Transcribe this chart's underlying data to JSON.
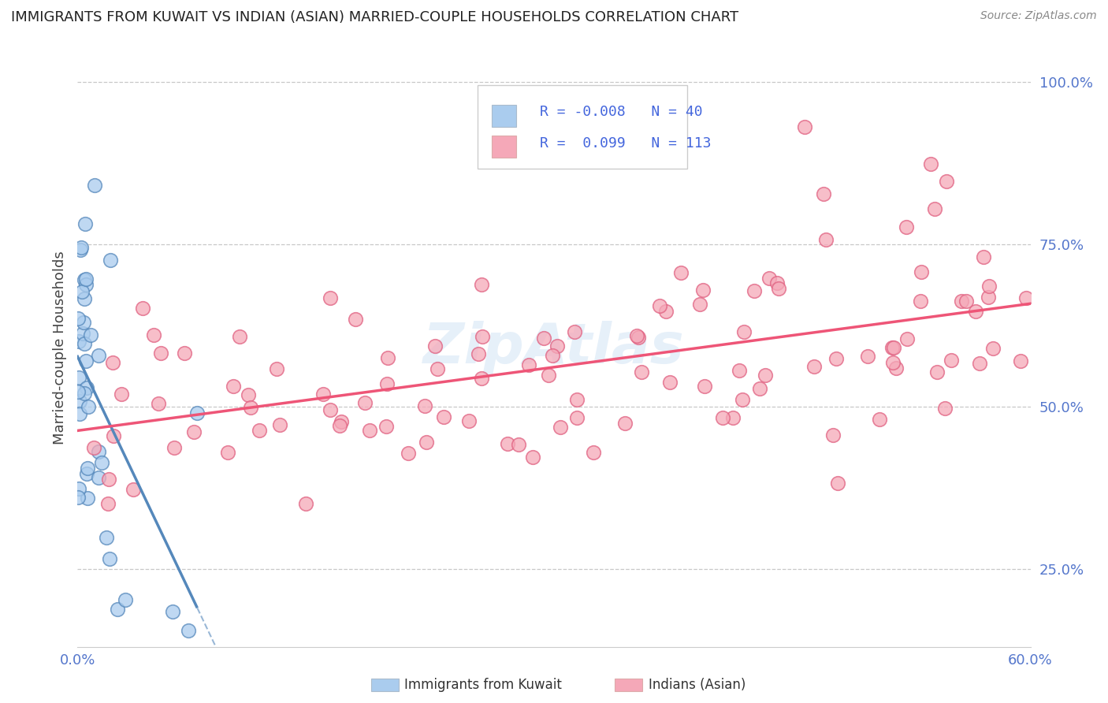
{
  "title": "IMMIGRANTS FROM KUWAIT VS INDIAN (ASIAN) MARRIED-COUPLE HOUSEHOLDS CORRELATION CHART",
  "source": "Source: ZipAtlas.com",
  "ylabel": "Married-couple Households",
  "x_label_kuwait": "Immigrants from Kuwait",
  "x_label_indian": "Indians (Asian)",
  "x_min": 0.0,
  "x_max": 0.6,
  "y_min": 0.13,
  "y_max": 1.05,
  "y_ticks": [
    0.25,
    0.5,
    0.75,
    1.0
  ],
  "y_tick_labels": [
    "25.0%",
    "50.0%",
    "75.0%",
    "100.0%"
  ],
  "r_kuwait": -0.008,
  "n_kuwait": 40,
  "r_indian": 0.099,
  "n_indian": 113,
  "color_kuwait": "#aaccee",
  "color_indian": "#f5a8b8",
  "color_line_kuwait": "#5588bb",
  "color_line_indian": "#ee5577",
  "tick_color": "#5577cc",
  "background_color": "#ffffff",
  "grid_color": "#c8c8c8",
  "legend_r_color": "#4466dd",
  "legend_n_color": "#4466dd"
}
